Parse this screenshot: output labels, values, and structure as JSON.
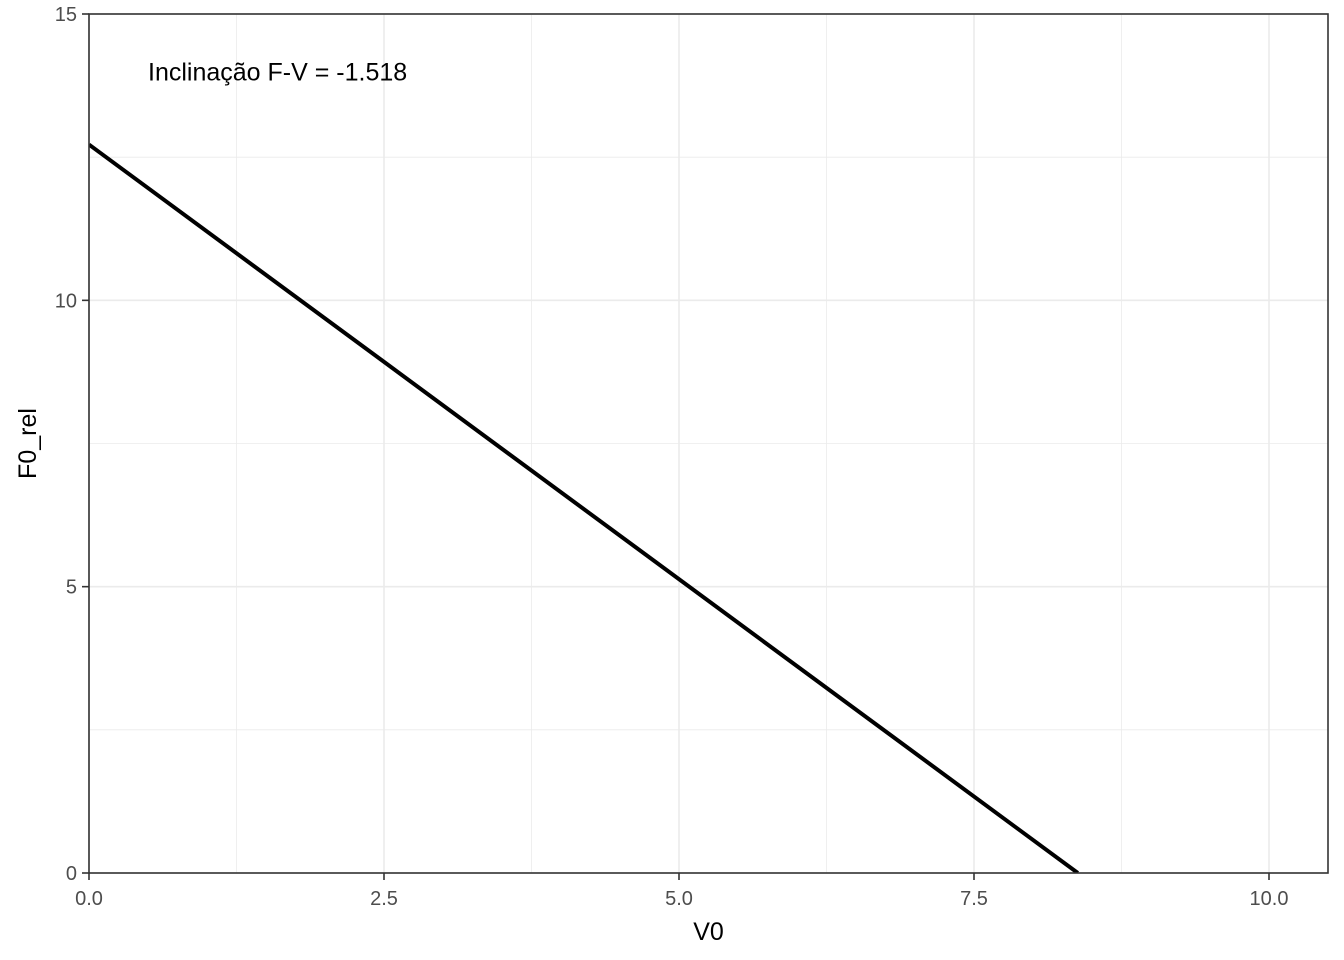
{
  "chart_data": {
    "type": "line",
    "title": "",
    "xlabel": "V0",
    "ylabel": "F0_rel",
    "xlim": [
      0,
      10.5
    ],
    "ylim": [
      0,
      15
    ],
    "x_ticks": [
      0,
      2.5,
      5,
      7.5,
      10
    ],
    "x_tick_labels": [
      "0.0",
      "2.5",
      "5.0",
      "7.5",
      "10.0"
    ],
    "y_ticks": [
      0,
      5,
      10,
      15
    ],
    "y_tick_labels": [
      "0",
      "5",
      "10",
      "15"
    ],
    "x_minor_ticks": [
      1.25,
      3.75,
      6.25,
      8.75
    ],
    "y_minor_ticks": [
      2.5,
      7.5,
      12.5
    ],
    "grid": true,
    "series": [
      {
        "x": [
          0,
          8.38
        ],
        "y": [
          12.72,
          0
        ]
      }
    ],
    "annotations": [
      {
        "text": "Inclinação F-V = -1.518",
        "x": 0.5,
        "y": 14.0
      }
    ]
  }
}
